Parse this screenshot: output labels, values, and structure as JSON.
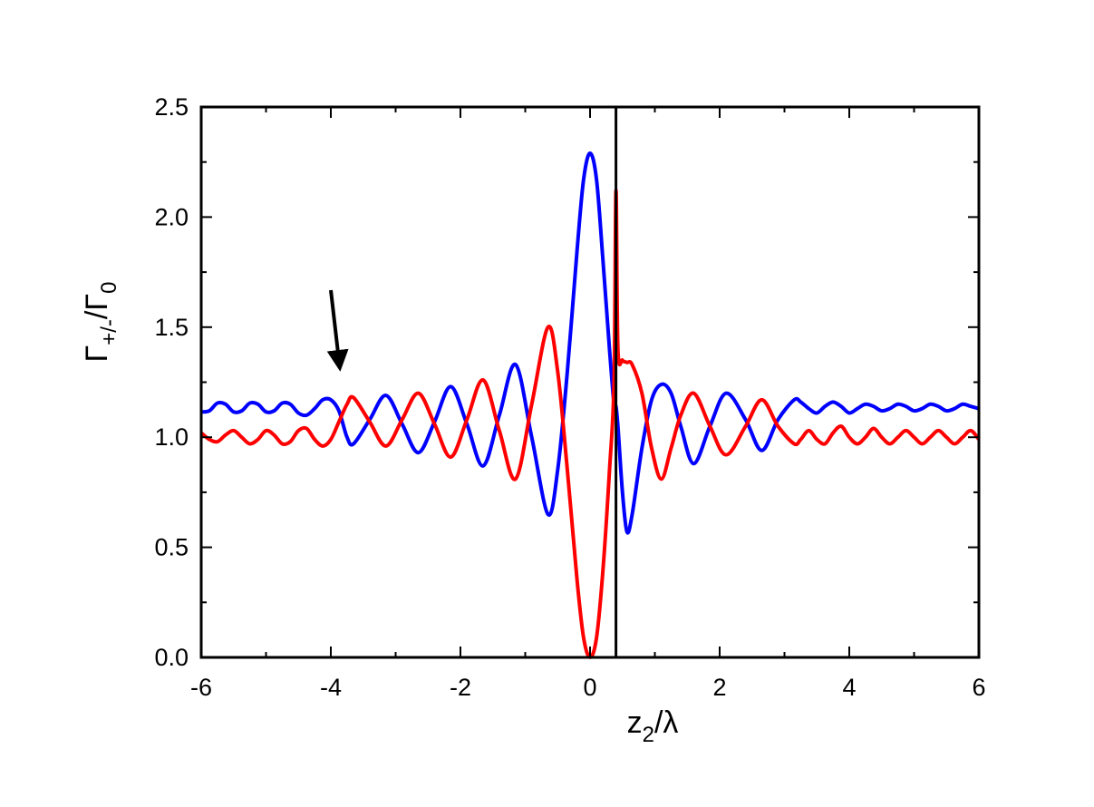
{
  "chart_data": {
    "type": "line",
    "xlabel": [
      "z",
      "2",
      "/λ"
    ],
    "ylabel": [
      "Γ",
      "+/-",
      "/Γ",
      "0"
    ],
    "xlim": [
      -6,
      6
    ],
    "ylim": [
      0,
      2.5
    ],
    "xticks": [
      -6,
      -4,
      -2,
      0,
      2,
      4,
      6
    ],
    "xminorticks": [
      -5,
      -3,
      -1,
      1,
      3,
      5
    ],
    "yticks": [
      {
        "value": 0,
        "label": "0.0"
      },
      0.5,
      {
        "value": 1,
        "label": "1.0"
      },
      1.5,
      {
        "value": 2,
        "label": "2.0"
      },
      2.5
    ],
    "yminorticks": [
      0.25,
      0.75,
      1.25,
      1.75,
      2.25
    ],
    "vline": 0.4,
    "x": [
      -6,
      -5.875,
      -5.75,
      -5.625,
      -5.5,
      -5.375,
      -5.25,
      -5.125,
      -5,
      -4.875,
      -4.75,
      -4.625,
      -4.5,
      -4.375,
      -4.25,
      -4.125,
      -4,
      -3.875,
      -3.75,
      -3.65,
      -3.4,
      -3.15,
      -2.9,
      -2.65,
      -2.4,
      -2.15,
      -1.9,
      -1.65,
      -1.4,
      -1.15,
      -0.9,
      -0.65,
      -0.5,
      -0.35,
      -0.2,
      -0.1,
      0,
      0.1,
      0.2,
      0.3,
      0.37,
      0.4,
      0.43,
      0.5,
      0.57,
      0.65,
      0.8,
      0.95,
      1.1,
      1.25,
      1.4,
      1.6,
      1.85,
      2.1,
      2.4,
      2.65,
      2.9,
      3.15,
      3.25,
      3.375,
      3.5,
      3.625,
      3.75,
      3.875,
      4,
      4.125,
      4.25,
      4.375,
      4.5,
      4.625,
      4.75,
      4.875,
      5,
      5.125,
      5.25,
      5.375,
      5.5,
      5.625,
      5.75,
      5.875,
      6
    ],
    "series": [
      {
        "color": "#0000ff",
        "values": [
          1.115,
          1.12,
          1.155,
          1.15,
          1.115,
          1.12,
          1.155,
          1.15,
          1.115,
          1.12,
          1.155,
          1.15,
          1.11,
          1.1,
          1.13,
          1.17,
          1.17,
          1.12,
          1.0,
          0.97,
          1.08,
          1.19,
          1.06,
          0.93,
          1.07,
          1.23,
          1.06,
          0.87,
          1.1,
          1.33,
          1.0,
          0.65,
          0.85,
          1.3,
          1.85,
          2.17,
          2.29,
          2.17,
          1.8,
          1.4,
          1.15,
          1.14,
          1.05,
          0.75,
          0.57,
          0.65,
          0.95,
          1.17,
          1.24,
          1.2,
          1.05,
          0.88,
          1.05,
          1.2,
          1.08,
          0.94,
          1.08,
          1.17,
          1.16,
          1.13,
          1.11,
          1.14,
          1.16,
          1.14,
          1.11,
          1.13,
          1.15,
          1.14,
          1.12,
          1.13,
          1.15,
          1.14,
          1.12,
          1.13,
          1.15,
          1.14,
          1.12,
          1.13,
          1.15,
          1.14,
          1.13
        ]
      },
      {
        "color": "#ff0000",
        "values": [
          1.02,
          0.99,
          0.98,
          1.01,
          1.03,
          1.0,
          0.97,
          0.99,
          1.03,
          1.01,
          0.97,
          0.98,
          1.03,
          1.04,
          0.99,
          0.96,
          0.99,
          1.07,
          1.15,
          1.18,
          1.07,
          0.96,
          1.08,
          1.2,
          1.06,
          0.91,
          1.08,
          1.26,
          1.03,
          0.81,
          1.15,
          1.5,
          1.3,
          0.85,
          0.35,
          0.09,
          0.0,
          0.09,
          0.4,
          0.85,
          1.25,
          2.12,
          1.4,
          1.35,
          1.34,
          1.33,
          1.2,
          0.95,
          0.81,
          0.95,
          1.1,
          1.2,
          1.05,
          0.92,
          1.05,
          1.17,
          1.05,
          0.97,
          0.99,
          1.03,
          0.99,
          0.97,
          1.02,
          1.05,
          1.0,
          0.97,
          1.0,
          1.04,
          1.0,
          0.97,
          1.0,
          1.03,
          1.0,
          0.97,
          1.0,
          1.03,
          1.0,
          0.97,
          1.0,
          1.03,
          0.99
        ]
      }
    ]
  }
}
